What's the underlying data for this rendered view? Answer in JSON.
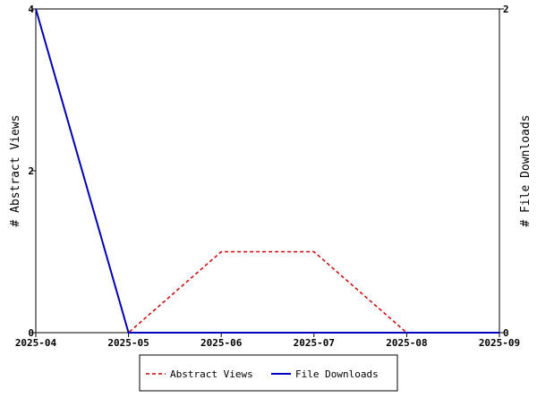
{
  "chart_data": {
    "type": "line",
    "categories": [
      "2025-04",
      "2025-05",
      "2025-06",
      "2025-07",
      "2025-08",
      "2025-09"
    ],
    "series": [
      {
        "name": "Abstract Views",
        "axis": "left",
        "color": "#cc0000",
        "style": "dashed",
        "values": [
          4,
          0,
          1,
          1,
          0,
          0
        ]
      },
      {
        "name": "File Downloads",
        "axis": "right",
        "color": "#0000bb",
        "style": "solid",
        "values": [
          2,
          0,
          0,
          0,
          0,
          0
        ]
      }
    ],
    "ylabel": "# Abstract Views",
    "y2label": "# File Downloads",
    "ylim": [
      0,
      4
    ],
    "y2lim": [
      0,
      2
    ],
    "yticks": [
      "0",
      "2",
      "4"
    ],
    "y2ticks": [
      "0",
      "2"
    ],
    "legend": "bottom-center",
    "grid": false
  }
}
